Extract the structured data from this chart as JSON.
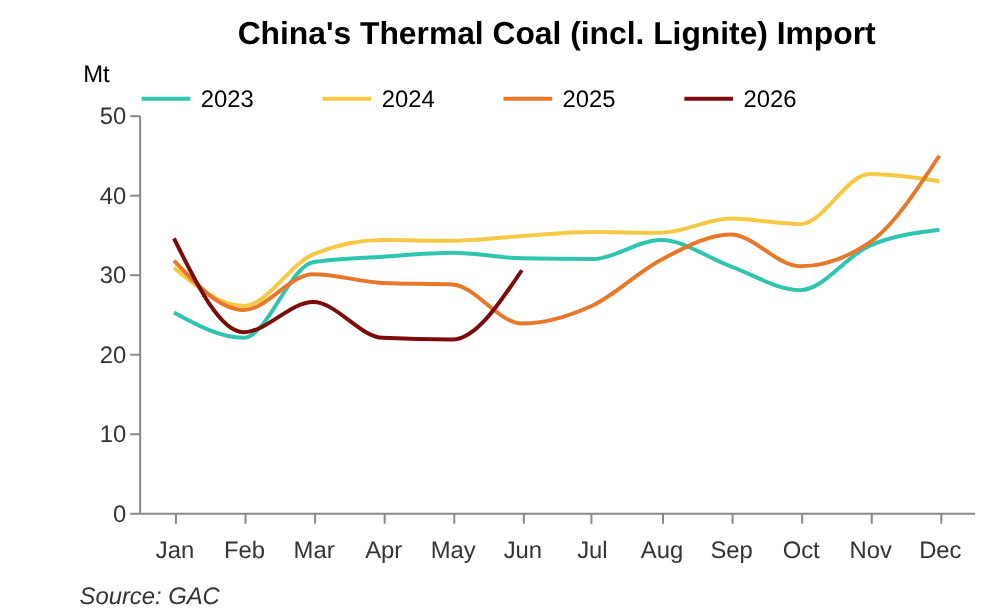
{
  "chart_data": {
    "type": "line",
    "title": "China's Thermal Coal (incl. Lignite) Import",
    "ylabel": "Mt",
    "categories": [
      "Jan",
      "Feb",
      "Mar",
      "Apr",
      "May",
      "Jun",
      "Jul",
      "Aug",
      "Sep",
      "Oct",
      "Nov",
      "Dec"
    ],
    "series": [
      {
        "name": "2023",
        "color": "#2ec4b0",
        "values": [
          25.2,
          22,
          31.5,
          32.2,
          32.7,
          32,
          31.9,
          34.3,
          31,
          28,
          33.6,
          35.6
        ]
      },
      {
        "name": "2024",
        "color": "#f7c843",
        "values": [
          30.8,
          26,
          32.5,
          34.3,
          34.2,
          34.8,
          35.3,
          35.2,
          37,
          36.3,
          42.6,
          41.7
        ]
      },
      {
        "name": "2025",
        "color": "#e8772a",
        "values": [
          31.7,
          25.5,
          30,
          28.9,
          28.7,
          23.8,
          26,
          31.8,
          35,
          31,
          34,
          44.9
        ]
      },
      {
        "name": "2026",
        "color": "#7b0c0c",
        "values": [
          34.5,
          22.7,
          26.5,
          22,
          21.8,
          30.5,
          null,
          null,
          null,
          null,
          null,
          null
        ]
      }
    ],
    "ylim": [
      0,
      50
    ],
    "yticks": [
      0,
      10,
      20,
      30,
      40,
      50
    ],
    "grid": false,
    "legend": "top",
    "marker": "none",
    "line_style": "solid",
    "annotations": [
      "Source: GAC"
    ]
  }
}
